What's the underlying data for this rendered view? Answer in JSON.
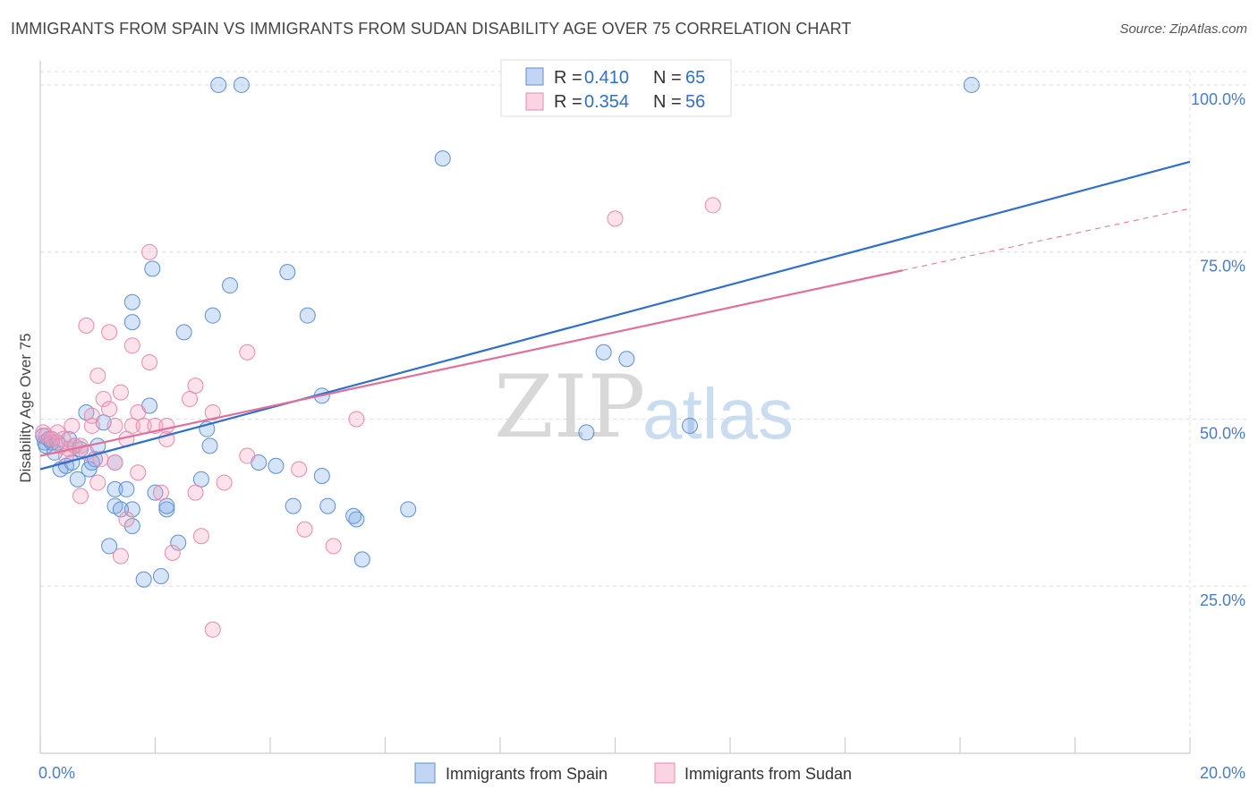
{
  "title": "IMMIGRANTS FROM SPAIN VS IMMIGRANTS FROM SUDAN DISABILITY AGE OVER 75 CORRELATION CHART",
  "source": "Source: ZipAtlas.com",
  "watermark": {
    "zip": "ZIP",
    "atlas": "atlas"
  },
  "colors": {
    "spain_fill": "rgba(120,165,230,0.30)",
    "spain_stroke": "#5b8fd6",
    "spain_line": "#2f6fcc",
    "sudan_fill": "rgba(245,160,190,0.30)",
    "sudan_stroke": "#e88aab",
    "sudan_line": "#e0709a",
    "grid": "#dddddd",
    "tick_text": "#4a7cc7"
  },
  "legend": {
    "rows": [
      {
        "r_label": "R =",
        "r_value": "0.410",
        "n_label": "N =",
        "n_value": "65"
      },
      {
        "r_label": "R =",
        "r_value": "0.354",
        "n_label": "N =",
        "n_value": "56"
      }
    ]
  },
  "chart_data": {
    "type": "scatter",
    "title": "IMMIGRANTS FROM SPAIN VS IMMIGRANTS FROM SUDAN DISABILITY AGE OVER 75 CORRELATION CHART",
    "xlabel": "",
    "ylabel": "Disability Age Over 75",
    "xlim": [
      0,
      20
    ],
    "ylim": [
      0,
      102
    ],
    "x_tick_labels": [
      "0.0%",
      "20.0%"
    ],
    "y_ticks": [
      25,
      50,
      75,
      100
    ],
    "y_tick_labels": [
      "25.0%",
      "50.0%",
      "75.0%",
      "100.0%"
    ],
    "grid": true,
    "legend_position": "top-center",
    "series": [
      {
        "name": "Immigrants from Spain",
        "r": 0.41,
        "n": 65,
        "trend": {
          "x0": 0,
          "y0": 42.5,
          "x1": 20,
          "y1": 88.5,
          "dash_from": null
        },
        "points": [
          [
            0.05,
            47.5
          ],
          [
            0.08,
            46.5
          ],
          [
            0.1,
            46
          ],
          [
            0.15,
            47
          ],
          [
            0.2,
            46.5
          ],
          [
            0.25,
            45
          ],
          [
            0.3,
            46.5
          ],
          [
            0.35,
            42.5
          ],
          [
            0.45,
            43
          ],
          [
            0.5,
            47
          ],
          [
            0.55,
            43.5
          ],
          [
            0.65,
            41
          ],
          [
            0.7,
            45.5
          ],
          [
            0.8,
            51
          ],
          [
            0.85,
            42.5
          ],
          [
            0.95,
            44
          ],
          [
            1.1,
            49.5
          ],
          [
            0.9,
            43.5
          ],
          [
            1.0,
            46
          ],
          [
            1.3,
            43.5
          ],
          [
            1.3,
            39.5
          ],
          [
            1.3,
            37
          ],
          [
            1.5,
            39.5
          ],
          [
            1.6,
            34
          ],
          [
            1.6,
            36.5
          ],
          [
            1.4,
            36.5
          ],
          [
            1.2,
            31
          ],
          [
            1.6,
            64.5
          ],
          [
            1.6,
            67.5
          ],
          [
            1.9,
            52
          ],
          [
            1.95,
            72.5
          ],
          [
            2.0,
            39
          ],
          [
            2.2,
            36.5
          ],
          [
            2.2,
            37
          ],
          [
            2.5,
            63
          ],
          [
            2.4,
            31.5
          ],
          [
            2.8,
            41
          ],
          [
            2.9,
            48.5
          ],
          [
            2.95,
            46
          ],
          [
            3.0,
            65.5
          ],
          [
            3.3,
            70
          ],
          [
            3.1,
            100
          ],
          [
            3.5,
            100
          ],
          [
            3.8,
            43.5
          ],
          [
            4.1,
            43
          ],
          [
            4.3,
            72
          ],
          [
            4.4,
            37
          ],
          [
            4.65,
            65.5
          ],
          [
            4.9,
            53.5
          ],
          [
            4.9,
            41.5
          ],
          [
            5.0,
            37
          ],
          [
            5.5,
            35
          ],
          [
            5.45,
            35.5
          ],
          [
            5.6,
            29
          ],
          [
            6.4,
            36.5
          ],
          [
            7.0,
            89
          ],
          [
            8.3,
            100
          ],
          [
            9.5,
            48
          ],
          [
            9.8,
            60
          ],
          [
            10.2,
            59
          ],
          [
            11.3,
            49
          ],
          [
            16.2,
            100
          ],
          [
            1.8,
            26
          ],
          [
            2.1,
            26.5
          ],
          [
            0.6,
            46
          ]
        ]
      },
      {
        "name": "Immigrants from Sudan",
        "r": 0.354,
        "n": 56,
        "trend": {
          "x0": 0,
          "y0": 44.5,
          "x1": 20,
          "y1": 81.5,
          "dash_from": 15
        },
        "points": [
          [
            0.05,
            48
          ],
          [
            0.1,
            47.5
          ],
          [
            0.2,
            47
          ],
          [
            0.3,
            48
          ],
          [
            0.4,
            47
          ],
          [
            0.5,
            45.5
          ],
          [
            0.6,
            46
          ],
          [
            0.7,
            46
          ],
          [
            0.8,
            45
          ],
          [
            0.9,
            49
          ],
          [
            0.8,
            64
          ],
          [
            0.7,
            38.5
          ],
          [
            0.9,
            50.5
          ],
          [
            1.0,
            56.5
          ],
          [
            1.0,
            40.5
          ],
          [
            1.1,
            53
          ],
          [
            1.2,
            51.5
          ],
          [
            1.2,
            63
          ],
          [
            1.3,
            49
          ],
          [
            1.3,
            43.5
          ],
          [
            1.4,
            29.5
          ],
          [
            1.4,
            54
          ],
          [
            1.5,
            47
          ],
          [
            1.6,
            49
          ],
          [
            1.6,
            61
          ],
          [
            1.7,
            51
          ],
          [
            1.7,
            42
          ],
          [
            1.8,
            49
          ],
          [
            1.9,
            75
          ],
          [
            1.9,
            58.5
          ],
          [
            2.0,
            49
          ],
          [
            2.1,
            39
          ],
          [
            2.2,
            47
          ],
          [
            2.2,
            49
          ],
          [
            2.3,
            30
          ],
          [
            2.6,
            53
          ],
          [
            2.7,
            39
          ],
          [
            2.7,
            55
          ],
          [
            2.8,
            32.5
          ],
          [
            3.0,
            18.5
          ],
          [
            3.0,
            51
          ],
          [
            3.2,
            40.5
          ],
          [
            3.6,
            60
          ],
          [
            3.6,
            44.5
          ],
          [
            4.5,
            42.5
          ],
          [
            4.6,
            33.5
          ],
          [
            5.1,
            31
          ],
          [
            5.5,
            50
          ],
          [
            10.0,
            80
          ],
          [
            11.7,
            82
          ],
          [
            0.2,
            47
          ],
          [
            0.35,
            46
          ],
          [
            0.45,
            44.5
          ],
          [
            0.55,
            49
          ],
          [
            1.05,
            44
          ],
          [
            1.5,
            35
          ]
        ]
      }
    ]
  },
  "bottom_legend": [
    "Immigrants from Spain",
    "Immigrants from Sudan"
  ]
}
